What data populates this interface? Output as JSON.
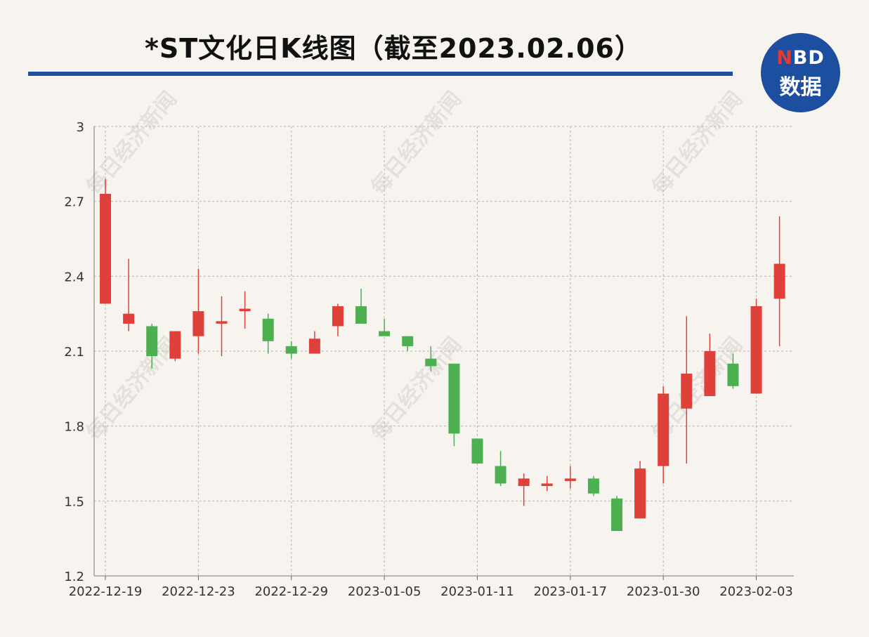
{
  "title": "*ST文化日K线图（截至2023.02.06）",
  "logo": {
    "accent_letter": "N",
    "letters": "BD",
    "subtitle": "数据"
  },
  "watermark": "每日经济新闻",
  "colors": {
    "up": "#e0403a",
    "down": "#4caf50",
    "title_rule": "#1f4f9e",
    "logo_bg": "#1d4fa0"
  },
  "chart_data": {
    "type": "candlestick",
    "title": "*ST文化日K线图（截至2023.02.06）",
    "ylim": [
      1.2,
      3
    ],
    "y_ticks": [
      "1.2",
      "1.5",
      "1.8",
      "2.1",
      "2.4",
      "2.7",
      "3"
    ],
    "x_tick_labels": [
      "2022-12-19",
      "2022-12-23",
      "2022-12-29",
      "2023-01-05",
      "2023-01-11",
      "2023-01-17",
      "2023-01-30",
      "2023-02-03"
    ],
    "x_tick_positions": [
      0,
      4,
      8,
      12,
      16,
      20,
      24,
      28
    ],
    "grid": true,
    "candles": [
      {
        "open": 2.29,
        "close": 2.73,
        "high": 2.79,
        "low": 2.29
      },
      {
        "open": 2.21,
        "close": 2.25,
        "high": 2.47,
        "low": 2.18
      },
      {
        "open": 2.2,
        "close": 2.08,
        "high": 2.21,
        "low": 2.03
      },
      {
        "open": 2.07,
        "close": 2.18,
        "high": 2.18,
        "low": 2.06
      },
      {
        "open": 2.16,
        "close": 2.26,
        "high": 2.43,
        "low": 2.09
      },
      {
        "open": 2.21,
        "close": 2.22,
        "high": 2.32,
        "low": 2.08
      },
      {
        "open": 2.26,
        "close": 2.27,
        "high": 2.34,
        "low": 2.19
      },
      {
        "open": 2.23,
        "close": 2.14,
        "high": 2.25,
        "low": 2.09
      },
      {
        "open": 2.12,
        "close": 2.09,
        "high": 2.14,
        "low": 2.07
      },
      {
        "open": 2.09,
        "close": 2.15,
        "high": 2.18,
        "low": 2.09
      },
      {
        "open": 2.2,
        "close": 2.28,
        "high": 2.29,
        "low": 2.16
      },
      {
        "open": 2.28,
        "close": 2.21,
        "high": 2.35,
        "low": 2.21
      },
      {
        "open": 2.18,
        "close": 2.16,
        "high": 2.23,
        "low": 2.16
      },
      {
        "open": 2.16,
        "close": 2.12,
        "high": 2.16,
        "low": 2.1
      },
      {
        "open": 2.07,
        "close": 2.04,
        "high": 2.12,
        "low": 2.02
      },
      {
        "open": 2.05,
        "close": 1.77,
        "high": 2.05,
        "low": 1.72
      },
      {
        "open": 1.75,
        "close": 1.65,
        "high": 1.75,
        "low": 1.65
      },
      {
        "open": 1.64,
        "close": 1.57,
        "high": 1.7,
        "low": 1.56
      },
      {
        "open": 1.56,
        "close": 1.59,
        "high": 1.61,
        "low": 1.48
      },
      {
        "open": 1.56,
        "close": 1.57,
        "high": 1.6,
        "low": 1.54
      },
      {
        "open": 1.58,
        "close": 1.59,
        "high": 1.64,
        "low": 1.55
      },
      {
        "open": 1.59,
        "close": 1.53,
        "high": 1.6,
        "low": 1.52
      },
      {
        "open": 1.51,
        "close": 1.38,
        "high": 1.52,
        "low": 1.38
      },
      {
        "open": 1.43,
        "close": 1.63,
        "high": 1.66,
        "low": 1.43
      },
      {
        "open": 1.64,
        "close": 1.93,
        "high": 1.96,
        "low": 1.57
      },
      {
        "open": 1.87,
        "close": 2.01,
        "high": 2.24,
        "low": 1.65
      },
      {
        "open": 1.92,
        "close": 2.1,
        "high": 2.17,
        "low": 1.92
      },
      {
        "open": 2.05,
        "close": 1.96,
        "high": 2.09,
        "low": 1.95
      },
      {
        "open": 1.93,
        "close": 2.28,
        "high": 2.31,
        "low": 1.93
      },
      {
        "open": 2.31,
        "close": 2.45,
        "high": 2.64,
        "low": 2.12
      }
    ]
  }
}
